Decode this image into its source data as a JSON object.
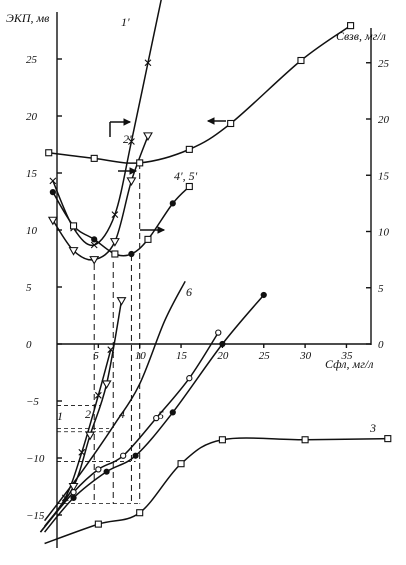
{
  "chart_data": {
    "type": "line",
    "title": "",
    "ylabel": "ЭКП, мв",
    "xlabel": "Сфл, мг/л",
    "y2label": "Свзв, мг/л",
    "xlim": [
      0,
      40
    ],
    "ylim": [
      -18,
      29
    ],
    "y2lim": [
      0,
      29
    ],
    "x_ticks": [
      5,
      10,
      15,
      20,
      25,
      30,
      35
    ],
    "y_ticks": [
      25,
      20,
      15,
      10,
      5,
      0,
      -5,
      -10,
      -15
    ],
    "y2_ticks": [
      25,
      20,
      15,
      10,
      5,
      0
    ],
    "series": [
      {
        "name": "1",
        "marker": "x",
        "axis": "left",
        "points": [
          [
            -2,
            -16.5
          ],
          [
            1,
            -13.5
          ],
          [
            3,
            -9.5
          ],
          [
            5,
            -4.5
          ],
          [
            6.5,
            -0.5
          ]
        ]
      },
      {
        "name": "2",
        "marker": "triangle",
        "axis": "left",
        "points": [
          [
            -1.5,
            -16
          ],
          [
            2,
            -12.5
          ],
          [
            4,
            -8
          ],
          [
            6,
            -3.5
          ],
          [
            7.8,
            3.8
          ]
        ]
      },
      {
        "name": "3",
        "marker": "square",
        "axis": "left",
        "points": [
          [
            -1.5,
            -17.5
          ],
          [
            5,
            -15.8
          ],
          [
            10,
            -14.8
          ],
          [
            15,
            -10.5
          ],
          [
            20,
            -8.4
          ],
          [
            30,
            -8.4
          ],
          [
            40,
            -8.3
          ]
        ]
      },
      {
        "name": "4",
        "marker": "circle-open",
        "axis": "left",
        "points": [
          [
            -2,
            -16.5
          ],
          [
            2,
            -13
          ],
          [
            5,
            -11
          ],
          [
            8,
            -9.8
          ],
          [
            12,
            -6.5
          ],
          [
            16,
            -3
          ],
          [
            19.5,
            1
          ]
        ]
      },
      {
        "name": "5",
        "marker": "circle-filled",
        "axis": "left",
        "points": [
          [
            -1.5,
            -16.5
          ],
          [
            2,
            -13.5
          ],
          [
            6,
            -11.2
          ],
          [
            9.5,
            -9.8
          ],
          [
            14,
            -6
          ],
          [
            20,
            0
          ],
          [
            25,
            4.3
          ]
        ]
      },
      {
        "name": "6",
        "marker": "none",
        "axis": "left",
        "points": [
          [
            -1.5,
            -15.5
          ],
          [
            3,
            -11.2
          ],
          [
            7,
            -7
          ],
          [
            10,
            -3.5
          ],
          [
            13,
            2
          ],
          [
            15.5,
            5.5
          ]
        ]
      },
      {
        "name": "1'",
        "marker": "x",
        "axis": "right",
        "points": [
          [
            -0.5,
            14.5
          ],
          [
            2,
            10.3
          ],
          [
            4.5,
            8.8
          ],
          [
            7,
            11.5
          ],
          [
            9,
            18
          ],
          [
            11,
            25
          ],
          [
            13,
            32
          ]
        ]
      },
      {
        "name": "2'",
        "marker": "triangle",
        "axis": "right",
        "points": [
          [
            -0.5,
            11
          ],
          [
            2,
            8.3
          ],
          [
            4.5,
            7.5
          ],
          [
            7,
            9.1
          ],
          [
            9,
            14.5
          ],
          [
            11,
            18.5
          ]
        ]
      },
      {
        "name": "4', 5'",
        "marker": "square-circle",
        "axis": "right",
        "points": [
          [
            -0.5,
            13.5
          ],
          [
            2,
            10.5
          ],
          [
            4.5,
            9.3
          ],
          [
            7,
            8
          ],
          [
            9,
            8
          ],
          [
            11,
            9.3
          ],
          [
            14,
            12.5
          ],
          [
            16,
            14
          ]
        ]
      },
      {
        "name": "",
        "marker": "square",
        "axis": "right",
        "points": [
          [
            -1,
            17
          ],
          [
            4.5,
            16.5
          ],
          [
            10,
            16.1
          ],
          [
            16,
            17.3
          ],
          [
            21,
            19.6
          ],
          [
            29.5,
            25.2
          ],
          [
            35.5,
            28.3
          ]
        ]
      }
    ],
    "curve_labels": [
      "1",
      "2",
      "3",
      "4",
      "5",
      "6",
      "1'",
      "2'",
      "4', 5'"
    ],
    "grid": false
  }
}
